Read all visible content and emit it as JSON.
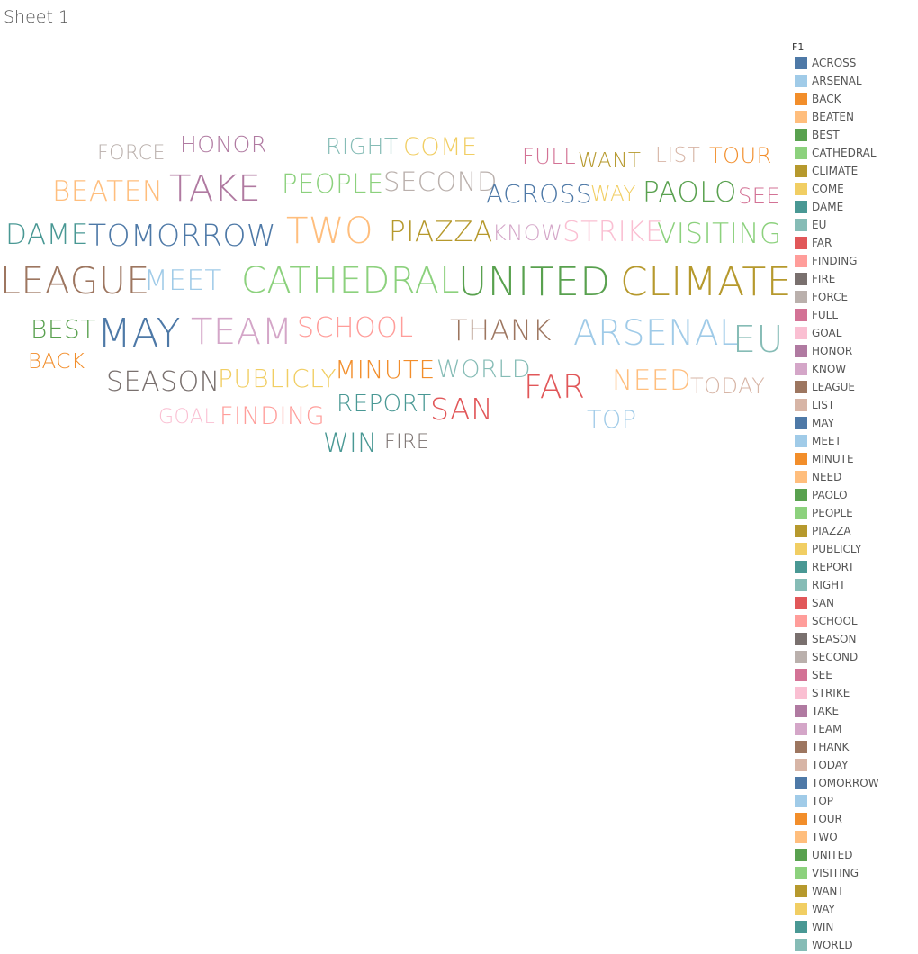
{
  "sheet": {
    "title": "Sheet 1"
  },
  "legend": {
    "title": "F1",
    "items": [
      {
        "label": "ACROSS",
        "color": "#4e79a7"
      },
      {
        "label": "ARSENAL",
        "color": "#a0cbe8"
      },
      {
        "label": "BACK",
        "color": "#f28e2b"
      },
      {
        "label": "BEATEN",
        "color": "#ffbe7d"
      },
      {
        "label": "BEST",
        "color": "#59a14f"
      },
      {
        "label": "CATHEDRAL",
        "color": "#8cd17d"
      },
      {
        "label": "CLIMATE",
        "color": "#b6992d"
      },
      {
        "label": "COME",
        "color": "#f1ce63"
      },
      {
        "label": "DAME",
        "color": "#499894"
      },
      {
        "label": "EU",
        "color": "#86bcb6"
      },
      {
        "label": "FAR",
        "color": "#e15759"
      },
      {
        "label": "FINDING",
        "color": "#ff9d9a"
      },
      {
        "label": "FIRE",
        "color": "#79706e"
      },
      {
        "label": "FORCE",
        "color": "#bab0ac"
      },
      {
        "label": "FULL",
        "color": "#d37295"
      },
      {
        "label": "GOAL",
        "color": "#fabfd2"
      },
      {
        "label": "HONOR",
        "color": "#b07aa1"
      },
      {
        "label": "KNOW",
        "color": "#d4a6c8"
      },
      {
        "label": "LEAGUE",
        "color": "#9d7660"
      },
      {
        "label": "LIST",
        "color": "#d7b5a6"
      },
      {
        "label": "MAY",
        "color": "#4e79a7"
      },
      {
        "label": "MEET",
        "color": "#a0cbe8"
      },
      {
        "label": "MINUTE",
        "color": "#f28e2b"
      },
      {
        "label": "NEED",
        "color": "#ffbe7d"
      },
      {
        "label": "PAOLO",
        "color": "#59a14f"
      },
      {
        "label": "PEOPLE",
        "color": "#8cd17d"
      },
      {
        "label": "PIAZZA",
        "color": "#b6992d"
      },
      {
        "label": "PUBLICLY",
        "color": "#f1ce63"
      },
      {
        "label": "REPORT",
        "color": "#499894"
      },
      {
        "label": "RIGHT",
        "color": "#86bcb6"
      },
      {
        "label": "SAN",
        "color": "#e15759"
      },
      {
        "label": "SCHOOL",
        "color": "#ff9d9a"
      },
      {
        "label": "SEASON",
        "color": "#79706e"
      },
      {
        "label": "SECOND",
        "color": "#bab0ac"
      },
      {
        "label": "SEE",
        "color": "#d37295"
      },
      {
        "label": "STRIKE",
        "color": "#fabfd2"
      },
      {
        "label": "TAKE",
        "color": "#b07aa1"
      },
      {
        "label": "TEAM",
        "color": "#d4a6c8"
      },
      {
        "label": "THANK",
        "color": "#9d7660"
      },
      {
        "label": "TODAY",
        "color": "#d7b5a6"
      },
      {
        "label": "TOMORROW",
        "color": "#4e79a7"
      },
      {
        "label": "TOP",
        "color": "#a0cbe8"
      },
      {
        "label": "TOUR",
        "color": "#f28e2b"
      },
      {
        "label": "TWO",
        "color": "#ffbe7d"
      },
      {
        "label": "UNITED",
        "color": "#59a14f"
      },
      {
        "label": "VISITING",
        "color": "#8cd17d"
      },
      {
        "label": "WANT",
        "color": "#b6992d"
      },
      {
        "label": "WAY",
        "color": "#f1ce63"
      },
      {
        "label": "WIN",
        "color": "#499894"
      },
      {
        "label": "WORLD",
        "color": "#86bcb6"
      }
    ]
  },
  "cloud": {
    "words": [
      {
        "text": "FORCE",
        "color": "#bab0ac"
      },
      {
        "text": "HONOR",
        "color": "#b07aa1"
      },
      {
        "text": "RIGHT",
        "color": "#86bcb6"
      },
      {
        "text": "COME",
        "color": "#f1ce63"
      },
      {
        "text": "FULL",
        "color": "#d37295"
      },
      {
        "text": "WANT",
        "color": "#b6992d"
      },
      {
        "text": "LIST",
        "color": "#d7b5a6"
      },
      {
        "text": "TOUR",
        "color": "#f28e2b"
      },
      {
        "text": "BEATEN",
        "color": "#ffbe7d"
      },
      {
        "text": "TAKE",
        "color": "#b07aa1"
      },
      {
        "text": "PEOPLE",
        "color": "#8cd17d"
      },
      {
        "text": "SECOND",
        "color": "#bab0ac"
      },
      {
        "text": "ACROSS",
        "color": "#4e79a7"
      },
      {
        "text": "WAY",
        "color": "#f1ce63"
      },
      {
        "text": "PAOLO",
        "color": "#59a14f"
      },
      {
        "text": "SEE",
        "color": "#d37295"
      },
      {
        "text": "DAME",
        "color": "#499894"
      },
      {
        "text": "TOMORROW",
        "color": "#4e79a7"
      },
      {
        "text": "TWO",
        "color": "#ffbe7d"
      },
      {
        "text": "PIAZZA",
        "color": "#b6992d"
      },
      {
        "text": "KNOW",
        "color": "#d4a6c8"
      },
      {
        "text": "STRIKE",
        "color": "#fabfd2"
      },
      {
        "text": "VISITING",
        "color": "#8cd17d"
      },
      {
        "text": "LEAGUE",
        "color": "#9d7660"
      },
      {
        "text": "MEET",
        "color": "#a0cbe8"
      },
      {
        "text": "CATHEDRAL",
        "color": "#8cd17d"
      },
      {
        "text": "UNITED",
        "color": "#59a14f"
      },
      {
        "text": "CLIMATE",
        "color": "#b6992d"
      },
      {
        "text": "BEST",
        "color": "#59a14f"
      },
      {
        "text": "MAY",
        "color": "#4e79a7"
      },
      {
        "text": "TEAM",
        "color": "#d4a6c8"
      },
      {
        "text": "SCHOOL",
        "color": "#ff9d9a"
      },
      {
        "text": "THANK",
        "color": "#9d7660"
      },
      {
        "text": "ARSENAL",
        "color": "#a0cbe8"
      },
      {
        "text": "EU",
        "color": "#86bcb6"
      },
      {
        "text": "BACK",
        "color": "#f28e2b"
      },
      {
        "text": "SEASON",
        "color": "#79706e"
      },
      {
        "text": "PUBLICLY",
        "color": "#f1ce63"
      },
      {
        "text": "MINUTE",
        "color": "#f28e2b"
      },
      {
        "text": "WORLD",
        "color": "#86bcb6"
      },
      {
        "text": "FAR",
        "color": "#e15759"
      },
      {
        "text": "NEED",
        "color": "#ffbe7d"
      },
      {
        "text": "TODAY",
        "color": "#d7b5a6"
      },
      {
        "text": "REPORT",
        "color": "#499894"
      },
      {
        "text": "SAN",
        "color": "#e15759"
      },
      {
        "text": "GOAL",
        "color": "#fabfd2"
      },
      {
        "text": "FINDING",
        "color": "#ff9d9a"
      },
      {
        "text": "TOP",
        "color": "#a0cbe8"
      },
      {
        "text": "WIN",
        "color": "#499894"
      },
      {
        "text": "FIRE",
        "color": "#79706e"
      }
    ]
  }
}
